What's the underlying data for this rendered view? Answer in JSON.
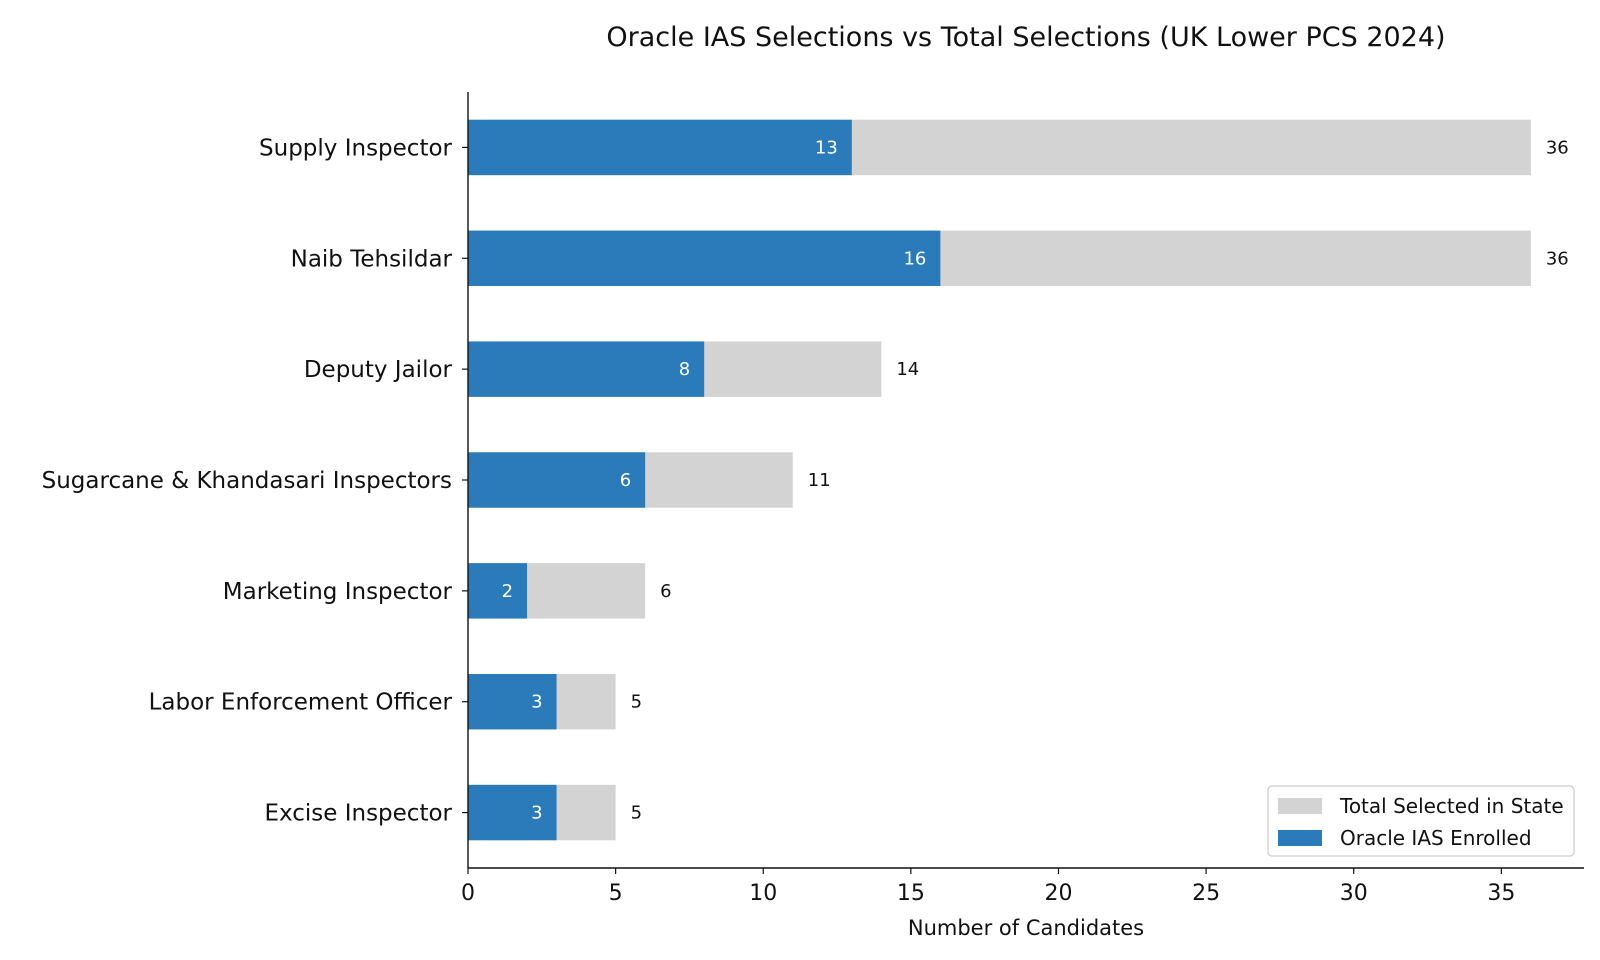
{
  "chart_data": {
    "type": "bar",
    "orientation": "horizontal",
    "stacking": "overlay",
    "title": "Oracle IAS Selections vs Total Selections (UK Lower PCS 2024)",
    "xlabel": "Number of Candidates",
    "ylabel": "",
    "xlim": [
      0,
      37.8
    ],
    "xticks": [
      0,
      5,
      10,
      15,
      20,
      25,
      30,
      35
    ],
    "grid": false,
    "legend_position": "lower-right",
    "categories": [
      "Supply Inspector",
      "Naib Tehsildar",
      "Deputy Jailor",
      "Sugarcane & Khandasari Inspectors",
      "Marketing Inspector",
      "Labor Enforcement Officer",
      "Excise Inspector"
    ],
    "series": [
      {
        "name": "Total Selected in State",
        "color": "#d3d3d3",
        "values": [
          36,
          36,
          14,
          11,
          6,
          5,
          5
        ]
      },
      {
        "name": "Oracle IAS Enrolled",
        "color": "#2b7bba",
        "values": [
          13,
          16,
          8,
          6,
          2,
          3,
          3
        ]
      }
    ]
  }
}
